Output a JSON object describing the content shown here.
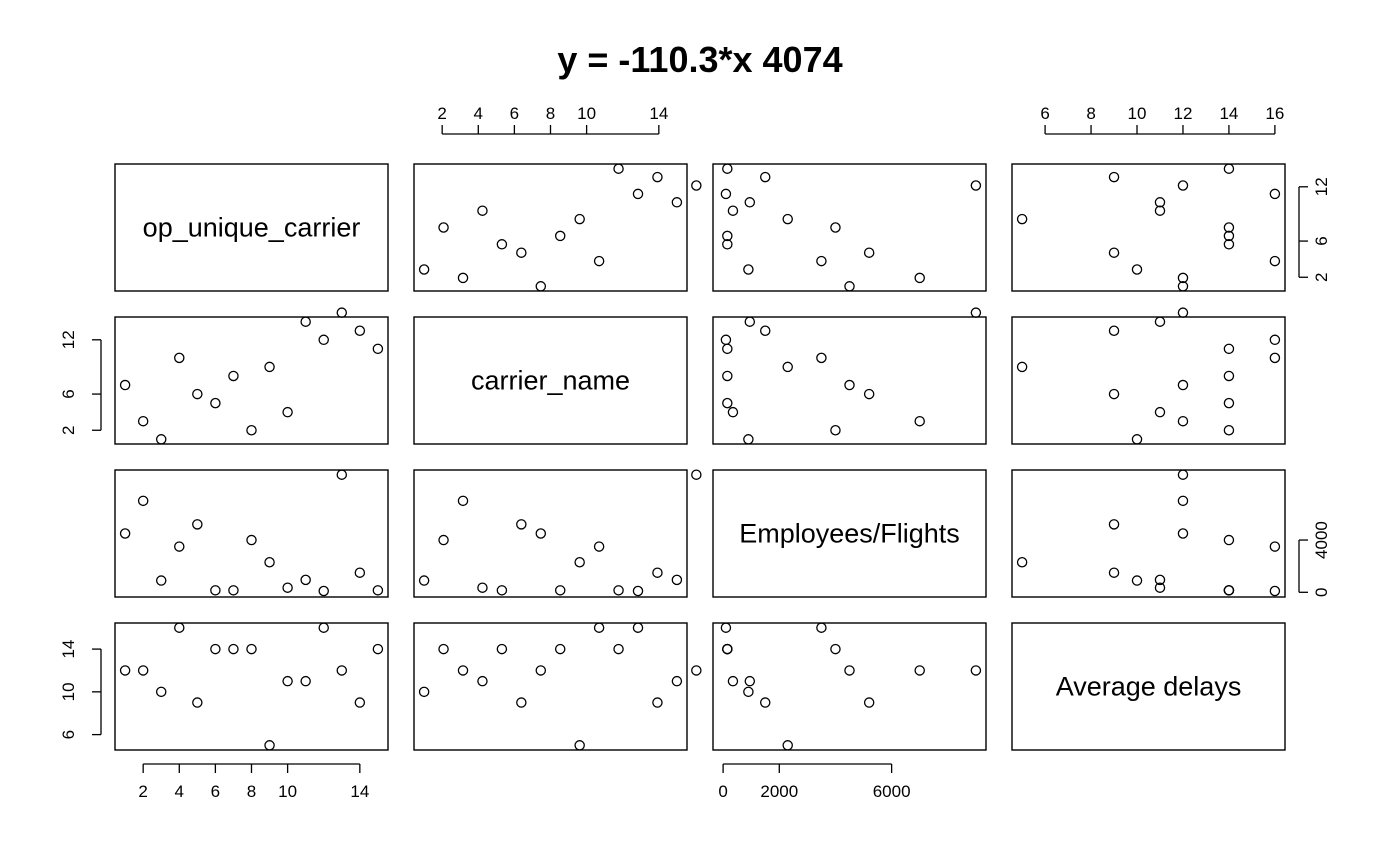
{
  "title": "y = -110.3*x 4074",
  "chart_data": {
    "type": "scatter",
    "subtype": "scatterplot-matrix",
    "title": "y = -110.3*x 4074",
    "variables": [
      "op_unique_carrier",
      "carrier_name",
      "Employees/Flights",
      "Average delays"
    ],
    "ranges": {
      "op_unique_carrier": [
        1,
        15
      ],
      "carrier_name": [
        1,
        14
      ],
      "Employees/Flights": [
        0,
        9000
      ],
      "Average delays": [
        5,
        16
      ]
    },
    "ticks": {
      "op_unique_carrier": [
        2,
        4,
        6,
        8,
        10,
        14
      ],
      "carrier_name": [
        2,
        6,
        12
      ],
      "Employees/Flights": [
        0,
        2000,
        6000
      ],
      "Average delays": [
        6,
        10,
        14
      ]
    },
    "tick_labels": {
      "top": [
        {
          "col": 1,
          "var": "op_unique_carrier",
          "values": [
            2,
            4,
            6,
            8,
            10,
            14
          ],
          "labels": [
            "2",
            "4",
            "6",
            "8",
            "10",
            "14"
          ]
        },
        {
          "col": 3,
          "var": "Average delays",
          "values": [
            6,
            8,
            10,
            12,
            14,
            16
          ],
          "labels": [
            "6",
            "8",
            "10",
            "12",
            "14",
            "16"
          ]
        }
      ],
      "bottom": [
        {
          "col": 0,
          "var": "op_unique_carrier",
          "values": [
            2,
            4,
            6,
            8,
            10,
            14
          ],
          "labels": [
            "2",
            "4",
            "6",
            "8",
            "10",
            "14"
          ]
        },
        {
          "col": 2,
          "var": "Employees/Flights",
          "values": [
            0,
            2000,
            6000
          ],
          "labels": [
            "0",
            "2000",
            "6000"
          ]
        }
      ],
      "left": [
        {
          "row": 1,
          "var": "carrier_name",
          "values": [
            2,
            6,
            12
          ],
          "labels": [
            "2",
            "6",
            "12"
          ]
        },
        {
          "row": 3,
          "var": "Average delays",
          "values": [
            6,
            10,
            14
          ],
          "labels": [
            "6",
            "10",
            "14"
          ]
        }
      ],
      "right": [
        {
          "row": 0,
          "var": "carrier_name",
          "values": [
            2,
            6,
            12
          ],
          "labels": [
            "2",
            "6",
            "12"
          ]
        },
        {
          "row": 2,
          "var": "Employees/Flights",
          "values": [
            0,
            4000
          ],
          "labels": [
            "0",
            "4000"
          ]
        }
      ]
    },
    "points": [
      {
        "op_unique_carrier": 1,
        "carrier_name": 7,
        "Employees/Flights": 4500,
        "Average delays": 12
      },
      {
        "op_unique_carrier": 2,
        "carrier_name": 3,
        "Employees/Flights": 7000,
        "Average delays": 12
      },
      {
        "op_unique_carrier": 3,
        "carrier_name": 1,
        "Employees/Flights": 900,
        "Average delays": 10
      },
      {
        "op_unique_carrier": 4,
        "carrier_name": 10,
        "Employees/Flights": 3500,
        "Average delays": 16
      },
      {
        "op_unique_carrier": 5,
        "carrier_name": 6,
        "Employees/Flights": 5200,
        "Average delays": 9
      },
      {
        "op_unique_carrier": 6,
        "carrier_name": 5,
        "Employees/Flights": 150,
        "Average delays": 14
      },
      {
        "op_unique_carrier": 7,
        "carrier_name": 8,
        "Employees/Flights": 150,
        "Average delays": 14
      },
      {
        "op_unique_carrier": 8,
        "carrier_name": 2,
        "Employees/Flights": 4000,
        "Average delays": 14
      },
      {
        "op_unique_carrier": 9,
        "carrier_name": 9,
        "Employees/Flights": 2300,
        "Average delays": 5
      },
      {
        "op_unique_carrier": 10,
        "carrier_name": 4,
        "Employees/Flights": 350,
        "Average delays": 11
      },
      {
        "op_unique_carrier": 11,
        "carrier_name": 14,
        "Employees/Flights": 950,
        "Average delays": 11
      },
      {
        "op_unique_carrier": 12,
        "carrier_name": 12,
        "Employees/Flights": 100,
        "Average delays": 16
      },
      {
        "op_unique_carrier": 13,
        "carrier_name": 15,
        "Employees/Flights": 9000,
        "Average delays": 12
      },
      {
        "op_unique_carrier": 14,
        "carrier_name": 13,
        "Employees/Flights": 1500,
        "Average delays": 9
      },
      {
        "op_unique_carrier": 15,
        "carrier_name": 11,
        "Employees/Flights": 150,
        "Average delays": 14
      }
    ],
    "grid": false,
    "legend": "none"
  }
}
